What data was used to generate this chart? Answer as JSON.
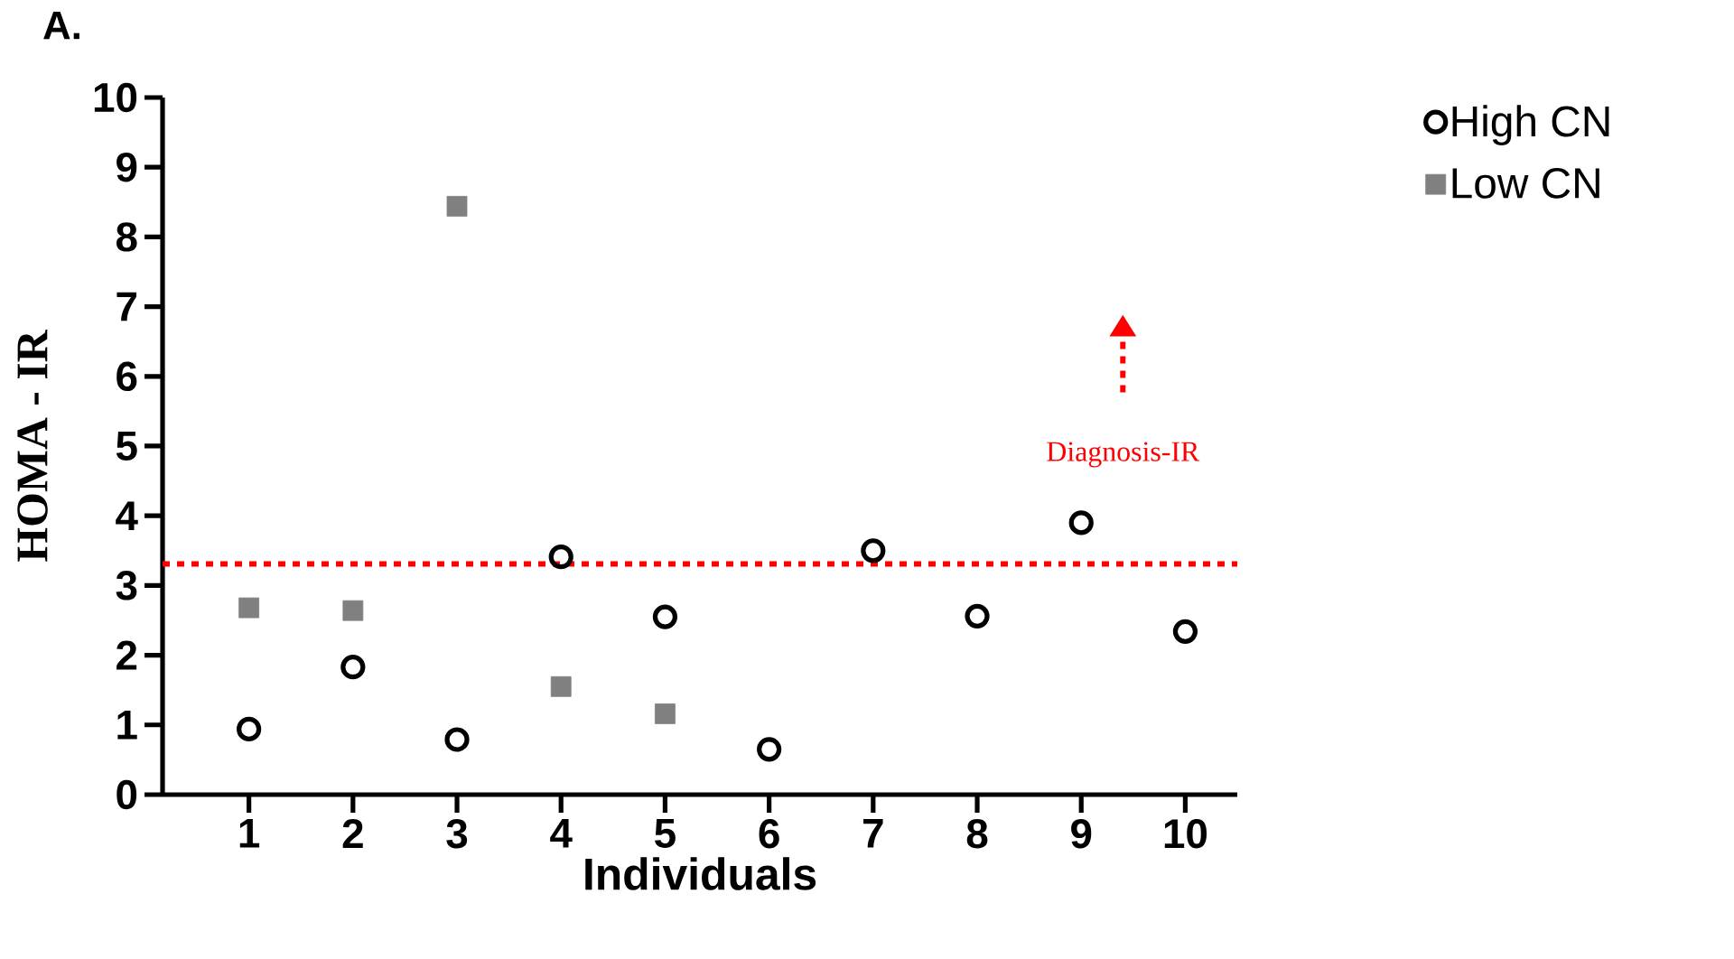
{
  "chart_data": {
    "type": "scatter",
    "xlabel": "Individuals",
    "ylabel": "HOMA - IR",
    "categories": [
      "1",
      "2",
      "3",
      "4",
      "5",
      "6",
      "7",
      "8",
      "9",
      "10"
    ],
    "series": [
      {
        "name": "High CN",
        "color": "#000000",
        "marker": "circle",
        "values": [
          0.94,
          1.83,
          0.79,
          3.41,
          2.55,
          0.65,
          3.5,
          2.56,
          3.9,
          2.34
        ]
      },
      {
        "name": "Low CN",
        "color": "#808080",
        "marker": "square",
        "values": [
          2.68,
          2.64,
          8.44,
          1.55,
          1.16,
          null,
          null,
          null,
          null,
          null
        ]
      }
    ],
    "ylim": [
      0,
      10
    ],
    "yticks": [
      0,
      1,
      2,
      3,
      4,
      5,
      6,
      7,
      8,
      9,
      10
    ],
    "ref_lines": [
      {
        "axis": "y",
        "value": 3.31,
        "label": "Diagnosis-IR",
        "color": "#ff0000",
        "line_style": "dotted"
      }
    ],
    "annotations": [
      "A."
    ],
    "legend": "top right",
    "grid": false
  }
}
